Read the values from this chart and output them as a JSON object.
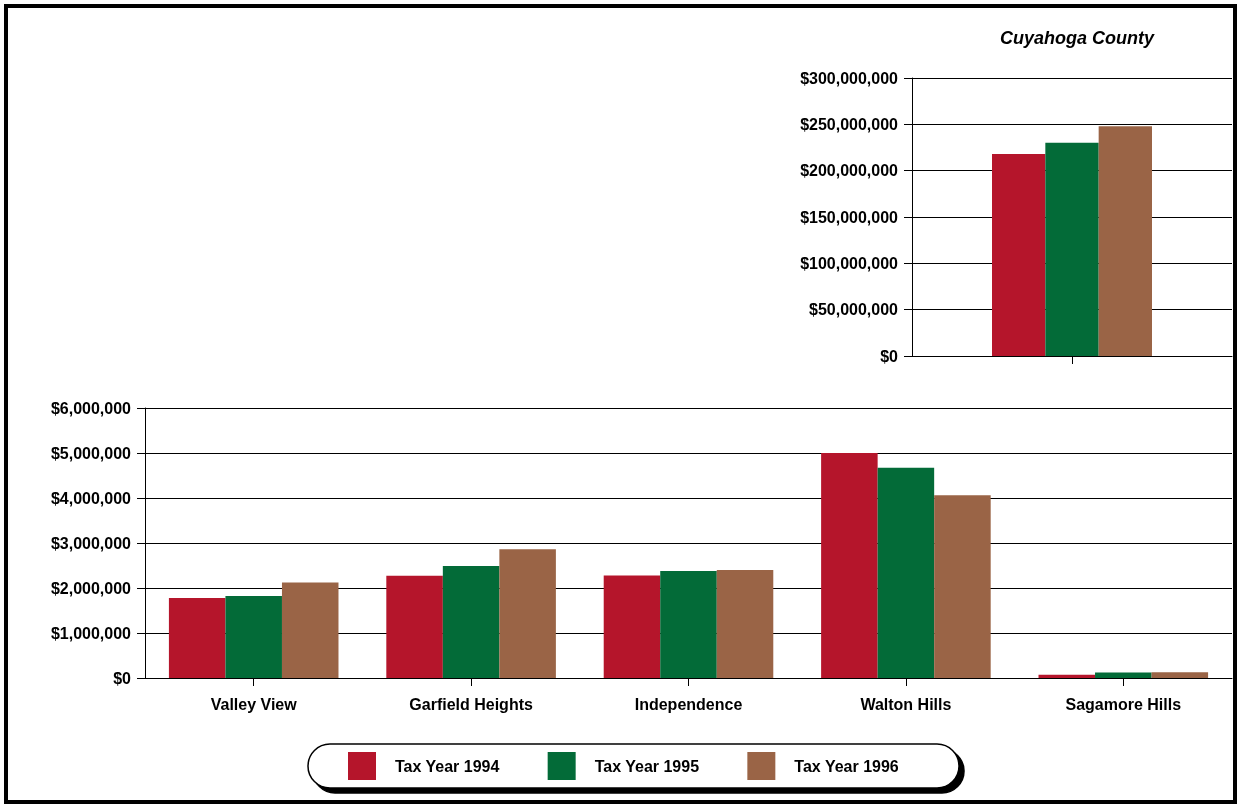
{
  "chart_data": [
    {
      "type": "bar",
      "title": "Cuyahoga County",
      "categories": [
        null
      ],
      "series": [
        {
          "color": "#b5152b",
          "values": [
            218000000
          ]
        },
        {
          "color": "#036b38",
          "values": [
            230000000
          ]
        },
        {
          "color": "#9a6446",
          "values": [
            248000000
          ]
        }
      ],
      "ylim": [
        0,
        300000000
      ],
      "yticks": [
        {
          "value": 0,
          "label": "$0"
        },
        {
          "value": 50000000,
          "label": "$50,000,000"
        },
        {
          "value": 100000000,
          "label": "$100,000,000"
        },
        {
          "value": 150000000,
          "label": "$150,000,000"
        },
        {
          "value": 200000000,
          "label": "$200,000,000"
        },
        {
          "value": 250000000,
          "label": "$250,000,000"
        },
        {
          "value": 300000000,
          "label": "$300,000,000"
        }
      ],
      "grid": "y",
      "legend": false
    },
    {
      "type": "bar",
      "categories": [
        "Valley View",
        "Garfield Heights",
        "Independence",
        "Walton Hills",
        "Sagamore Hills"
      ],
      "series": [
        {
          "name": "Tax Year 1994",
          "color": "#b5152b",
          "values": [
            1780000,
            2270000,
            2280000,
            5000000,
            70000
          ]
        },
        {
          "name": "Tax Year 1995",
          "color": "#036b38",
          "values": [
            1820000,
            2490000,
            2380000,
            4670000,
            120000
          ]
        },
        {
          "name": "Tax Year 1996",
          "color": "#9a6446",
          "values": [
            2120000,
            2860000,
            2400000,
            4060000,
            130000
          ]
        }
      ],
      "ylim": [
        0,
        6000000
      ],
      "yticks": [
        {
          "value": 0,
          "label": "$0"
        },
        {
          "value": 1000000,
          "label": "$1,000,000"
        },
        {
          "value": 2000000,
          "label": "$2,000,000"
        },
        {
          "value": 3000000,
          "label": "$3,000,000"
        },
        {
          "value": 4000000,
          "label": "$4,000,000"
        },
        {
          "value": 5000000,
          "label": "$5,000,000"
        },
        {
          "value": 6000000,
          "label": "$6,000,000"
        }
      ],
      "grid": "y",
      "legend": "bottom"
    }
  ]
}
